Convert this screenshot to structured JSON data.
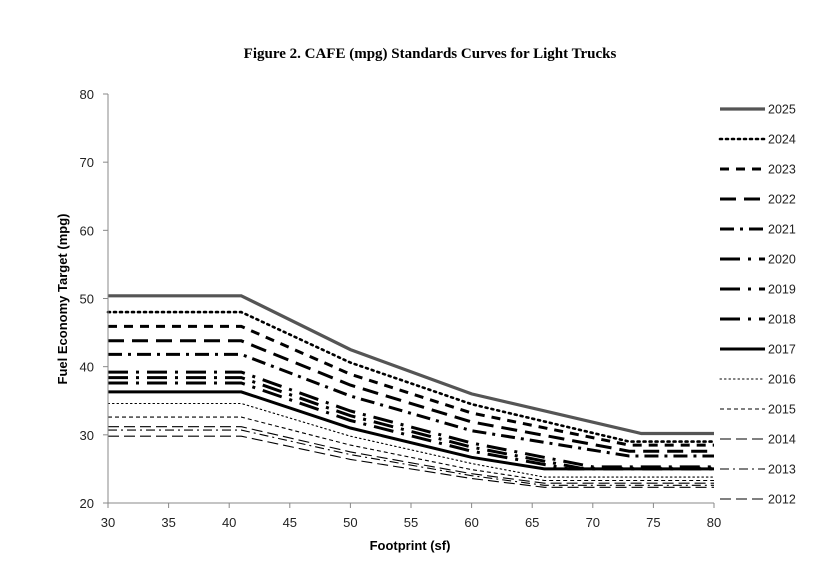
{
  "chart_data": {
    "type": "line",
    "title": "Figure 2.  CAFE (mpg) Standards Curves for Light Trucks",
    "xlabel": "Footprint (sf)",
    "ylabel": "Fuel Economy Target (mpg)",
    "xlim": [
      30,
      80
    ],
    "ylim": [
      20,
      80
    ],
    "xticks": [
      "30",
      "35",
      "40",
      "45",
      "50",
      "55",
      "60",
      "65",
      "70",
      "75",
      "80"
    ],
    "yticks": [
      "20",
      "30",
      "40",
      "50",
      "60",
      "70",
      "80"
    ],
    "grid": false,
    "legend_position": "right",
    "series": [
      {
        "name": "2025",
        "x": [
          30,
          41,
          50,
          60,
          74,
          80
        ],
        "y": [
          50.4,
          50.4,
          42.5,
          36.0,
          30.2,
          30.2
        ]
      },
      {
        "name": "2024",
        "x": [
          30,
          41,
          50,
          60,
          73,
          80
        ],
        "y": [
          48.0,
          48.0,
          40.6,
          34.5,
          29.0,
          29.0
        ]
      },
      {
        "name": "2023",
        "x": [
          30,
          41,
          50,
          60,
          73,
          80
        ],
        "y": [
          45.9,
          45.9,
          38.9,
          33.2,
          28.5,
          28.5
        ]
      },
      {
        "name": "2022",
        "x": [
          30,
          41,
          50,
          60,
          73,
          80
        ],
        "y": [
          43.8,
          43.8,
          37.3,
          31.9,
          27.6,
          27.6
        ]
      },
      {
        "name": "2021",
        "x": [
          30,
          41,
          50,
          60,
          73,
          80
        ],
        "y": [
          41.8,
          41.8,
          35.7,
          30.6,
          26.9,
          26.9
        ]
      },
      {
        "name": "2020",
        "x": [
          30,
          41,
          50,
          60,
          70,
          80
        ],
        "y": [
          39.2,
          39.2,
          33.5,
          28.8,
          25.3,
          25.3
        ]
      },
      {
        "name": "2019",
        "x": [
          30,
          41,
          50,
          60,
          69,
          80
        ],
        "y": [
          38.4,
          38.4,
          32.8,
          28.2,
          25.1,
          25.1
        ]
      },
      {
        "name": "2018",
        "x": [
          30,
          41,
          50,
          60,
          68,
          80
        ],
        "y": [
          37.6,
          37.6,
          32.1,
          27.6,
          25.0,
          25.0
        ]
      },
      {
        "name": "2017",
        "x": [
          30,
          41,
          50,
          60,
          66,
          80
        ],
        "y": [
          36.3,
          36.3,
          31.0,
          26.7,
          25.0,
          25.0
        ]
      },
      {
        "name": "2016",
        "x": [
          30,
          41,
          50,
          60,
          66,
          80
        ],
        "y": [
          34.6,
          34.6,
          29.8,
          25.8,
          23.8,
          23.8
        ]
      },
      {
        "name": "2015",
        "x": [
          30,
          41,
          50,
          60,
          66,
          80
        ],
        "y": [
          32.6,
          32.6,
          28.5,
          24.9,
          23.3,
          23.3
        ]
      },
      {
        "name": "2014",
        "x": [
          30,
          41,
          50,
          60,
          66,
          80
        ],
        "y": [
          31.2,
          31.2,
          27.5,
          24.3,
          22.9,
          22.9
        ]
      },
      {
        "name": "2013",
        "x": [
          30,
          41,
          50,
          60,
          66,
          80
        ],
        "y": [
          30.7,
          30.7,
          27.1,
          24.0,
          22.6,
          22.6
        ]
      },
      {
        "name": "2012",
        "x": [
          30,
          41,
          50,
          60,
          66,
          80
        ],
        "y": [
          29.8,
          29.8,
          26.4,
          23.6,
          22.3,
          22.3
        ]
      }
    ],
    "styles": {
      "2025": {
        "color": "#555555",
        "dash": "solid",
        "weight": "bold"
      },
      "2024": {
        "color": "#000000",
        "dash": "dot",
        "weight": "bold"
      },
      "2023": {
        "color": "#000000",
        "dash": "short-dash",
        "weight": "bold"
      },
      "2022": {
        "color": "#000000",
        "dash": "long-dash",
        "weight": "bold"
      },
      "2021": {
        "color": "#000000",
        "dash": "dash-dot",
        "weight": "bold"
      },
      "2020": {
        "color": "#000000",
        "dash": "long-dash-dot",
        "weight": "bold"
      },
      "2019": {
        "color": "#000000",
        "dash": "long-dash-dot",
        "weight": "bold"
      },
      "2018": {
        "color": "#000000",
        "dash": "long-dash-dot",
        "weight": "bold"
      },
      "2017": {
        "color": "#000000",
        "dash": "solid",
        "weight": "bold"
      },
      "2016": {
        "color": "#000000",
        "dash": "dot",
        "weight": "thin"
      },
      "2015": {
        "color": "#000000",
        "dash": "short-dash",
        "weight": "thin"
      },
      "2014": {
        "color": "#000000",
        "dash": "long-dash",
        "weight": "thin"
      },
      "2013": {
        "color": "#000000",
        "dash": "dash-dot",
        "weight": "thin"
      },
      "2012": {
        "color": "#000000",
        "dash": "long-dash",
        "weight": "thin"
      }
    }
  }
}
